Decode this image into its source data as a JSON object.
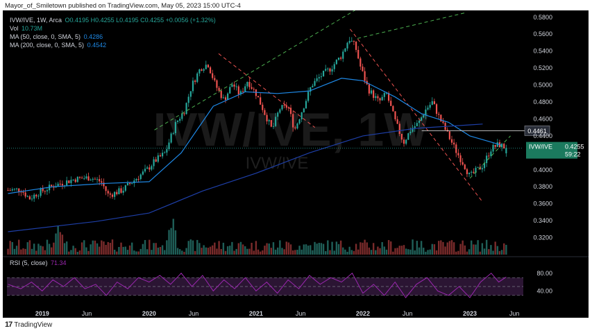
{
  "header": {
    "publisher": "Mayor_of_Smiletown published on TradingView.com, May 05, 2023 15:00 UTC-4"
  },
  "legend": {
    "symbol": "IVW/IVE, 1W, Arca",
    "ohlc": "O0.4195 H0.4255 L0.4195 C0.4255 +0.0056 (+1.32%)",
    "vol_label": "Vol",
    "vol_value": "10.73M",
    "ma50_label": "MA (50, close, 0, SMA, 5)",
    "ma50_value": "0.4286",
    "ma200_label": "MA (200, close, 0, SMA, 5)",
    "ma200_value": "0.4542",
    "rsi_label": "RSI (5, close)",
    "rsi_value": "71.34"
  },
  "watermark": {
    "big": "IVW/IVE, 1W",
    "small": "IVW/IVE"
  },
  "price_tag": {
    "symbol": "IVW/IVE",
    "price": "0.4255",
    "countdown": "59:22"
  },
  "level_tag": "0.4461",
  "footer": {
    "brand": "TradingView"
  },
  "colors": {
    "up": "#26a69a",
    "down": "#ef5350",
    "ma50": "#1e88e5",
    "ma200": "#1e3fa8",
    "rsi": "#9c27b0",
    "channel_green": "#4caf50",
    "channel_red": "#ef5350"
  },
  "chart_data": {
    "type": "candlestick",
    "timeframe": "1W",
    "y_ticks": [
      0.32,
      0.34,
      0.36,
      0.38,
      0.4,
      0.42,
      0.44,
      0.46,
      0.48,
      0.5,
      0.52,
      0.54,
      0.56,
      0.58
    ],
    "y_tick_labels": [
      "0.3200",
      "0.3400",
      "0.3600",
      "0.3800",
      "0.4000",
      "0.4200",
      "0.4400",
      "0.4600",
      "0.4800",
      "0.5000",
      "0.5200",
      "0.5400",
      "0.5600",
      "0.5800"
    ],
    "ylim": [
      0.3,
      0.588
    ],
    "x_labels": [
      "2019",
      "Jun",
      "2020",
      "Jun",
      "2021",
      "Jun",
      "2022",
      "Jun",
      "2023",
      "Jun"
    ],
    "x_label_times": [
      0,
      0.4167,
      1,
      1.4167,
      2,
      2.4167,
      3,
      3.4167,
      4,
      4.4167
    ],
    "x_start": -0.33,
    "x_end": 4.5,
    "close_path": [
      [
        -0.32,
        0.376
      ],
      [
        -0.2,
        0.377
      ],
      [
        -0.12,
        0.366
      ],
      [
        -0.05,
        0.372
      ],
      [
        0.1,
        0.381
      ],
      [
        0.3,
        0.389
      ],
      [
        0.45,
        0.391
      ],
      [
        0.55,
        0.386
      ],
      [
        0.62,
        0.37
      ],
      [
        0.75,
        0.376
      ],
      [
        0.9,
        0.392
      ],
      [
        0.98,
        0.4
      ],
      [
        1.05,
        0.41
      ],
      [
        1.15,
        0.42
      ],
      [
        1.25,
        0.455
      ],
      [
        1.33,
        0.47
      ],
      [
        1.4,
        0.5
      ],
      [
        1.48,
        0.52
      ],
      [
        1.55,
        0.525
      ],
      [
        1.62,
        0.5
      ],
      [
        1.7,
        0.482
      ],
      [
        1.78,
        0.502
      ],
      [
        1.85,
        0.488
      ],
      [
        1.92,
        0.505
      ],
      [
        2.0,
        0.49
      ],
      [
        2.07,
        0.47
      ],
      [
        2.15,
        0.447
      ],
      [
        2.22,
        0.472
      ],
      [
        2.3,
        0.475
      ],
      [
        2.36,
        0.447
      ],
      [
        2.43,
        0.47
      ],
      [
        2.52,
        0.5
      ],
      [
        2.6,
        0.51
      ],
      [
        2.7,
        0.52
      ],
      [
        2.8,
        0.535
      ],
      [
        2.87,
        0.555
      ],
      [
        2.93,
        0.545
      ],
      [
        2.98,
        0.52
      ],
      [
        3.05,
        0.495
      ],
      [
        3.15,
        0.48
      ],
      [
        3.22,
        0.49
      ],
      [
        3.3,
        0.458
      ],
      [
        3.38,
        0.432
      ],
      [
        3.45,
        0.448
      ],
      [
        3.52,
        0.455
      ],
      [
        3.58,
        0.47
      ],
      [
        3.65,
        0.48
      ],
      [
        3.72,
        0.46
      ],
      [
        3.8,
        0.44
      ],
      [
        3.88,
        0.42
      ],
      [
        3.95,
        0.405
      ],
      [
        4.0,
        0.392
      ],
      [
        4.05,
        0.398
      ],
      [
        4.12,
        0.405
      ],
      [
        4.2,
        0.425
      ],
      [
        4.27,
        0.43
      ],
      [
        4.34,
        0.4255
      ]
    ],
    "series": [
      {
        "name": "MA (50, close, 0, SMA, 5)",
        "points": [
          [
            -0.32,
            0.372
          ],
          [
            0.1,
            0.38
          ],
          [
            0.6,
            0.384
          ],
          [
            1.0,
            0.386
          ],
          [
            1.3,
            0.42
          ],
          [
            1.6,
            0.475
          ],
          [
            1.9,
            0.492
          ],
          [
            2.2,
            0.49
          ],
          [
            2.5,
            0.493
          ],
          [
            2.8,
            0.508
          ],
          [
            3.0,
            0.505
          ],
          [
            3.3,
            0.486
          ],
          [
            3.55,
            0.466
          ],
          [
            3.8,
            0.456
          ],
          [
            4.0,
            0.44
          ],
          [
            4.3,
            0.429
          ]
        ]
      },
      {
        "name": "MA (200, close, 0, SMA, 5)",
        "points": [
          [
            -0.32,
            0.327
          ],
          [
            0.5,
            0.339
          ],
          [
            1.0,
            0.349
          ],
          [
            1.5,
            0.375
          ],
          [
            2.0,
            0.396
          ],
          [
            2.5,
            0.42
          ],
          [
            3.0,
            0.44
          ],
          [
            3.5,
            0.449
          ],
          [
            4.0,
            0.453
          ],
          [
            4.12,
            0.454
          ]
        ]
      },
      {
        "name": "RSI (5, close)",
        "points": [
          [
            -0.32,
            55
          ],
          [
            -0.2,
            45
          ],
          [
            -0.1,
            60
          ],
          [
            0.0,
            40
          ],
          [
            0.1,
            65
          ],
          [
            0.2,
            50
          ],
          [
            0.3,
            70
          ],
          [
            0.4,
            45
          ],
          [
            0.5,
            55
          ],
          [
            0.6,
            30
          ],
          [
            0.7,
            60
          ],
          [
            0.8,
            45
          ],
          [
            0.9,
            70
          ],
          [
            1.0,
            60
          ],
          [
            1.1,
            75
          ],
          [
            1.2,
            55
          ],
          [
            1.3,
            80
          ],
          [
            1.4,
            50
          ],
          [
            1.5,
            75
          ],
          [
            1.6,
            40
          ],
          [
            1.7,
            65
          ],
          [
            1.8,
            45
          ],
          [
            1.9,
            70
          ],
          [
            2.0,
            40
          ],
          [
            2.1,
            60
          ],
          [
            2.2,
            35
          ],
          [
            2.3,
            65
          ],
          [
            2.4,
            45
          ],
          [
            2.5,
            75
          ],
          [
            2.6,
            55
          ],
          [
            2.7,
            70
          ],
          [
            2.8,
            60
          ],
          [
            2.9,
            80
          ],
          [
            3.0,
            35
          ],
          [
            3.1,
            55
          ],
          [
            3.2,
            30
          ],
          [
            3.3,
            60
          ],
          [
            3.4,
            25
          ],
          [
            3.5,
            55
          ],
          [
            3.6,
            70
          ],
          [
            3.7,
            40
          ],
          [
            3.8,
            30
          ],
          [
            3.9,
            50
          ],
          [
            4.0,
            25
          ],
          [
            4.1,
            60
          ],
          [
            4.2,
            80
          ],
          [
            4.27,
            60
          ],
          [
            4.34,
            71.34
          ]
        ]
      }
    ],
    "volume_note": "Vol 10.73M (latest bar)",
    "rsi_ticks": [
      40,
      80
    ],
    "rsi_tick_labels": [
      "40.00",
      "80.00"
    ],
    "rsi_bands": [
      30,
      50,
      70
    ],
    "horizontal_level": 0.4461,
    "last_price": 0.4255,
    "annotations": [
      {
        "kind": "channel-green",
        "from": [
          1.05,
          0.447
        ],
        "to": [
          2.95,
          0.59
        ]
      },
      {
        "kind": "channel-green",
        "from": [
          2.95,
          0.555
        ],
        "to": [
          3.95,
          0.585
        ]
      },
      {
        "kind": "channel-red",
        "from": [
          1.65,
          0.537
        ],
        "to": [
          2.55,
          0.45
        ]
      },
      {
        "kind": "channel-red",
        "from": [
          2.88,
          0.566
        ],
        "to": [
          4.12,
          0.362
        ]
      },
      {
        "kind": "channel-green-up",
        "from": [
          4.0,
          0.39
        ],
        "to": [
          4.38,
          0.44
        ]
      }
    ],
    "grid": false
  }
}
